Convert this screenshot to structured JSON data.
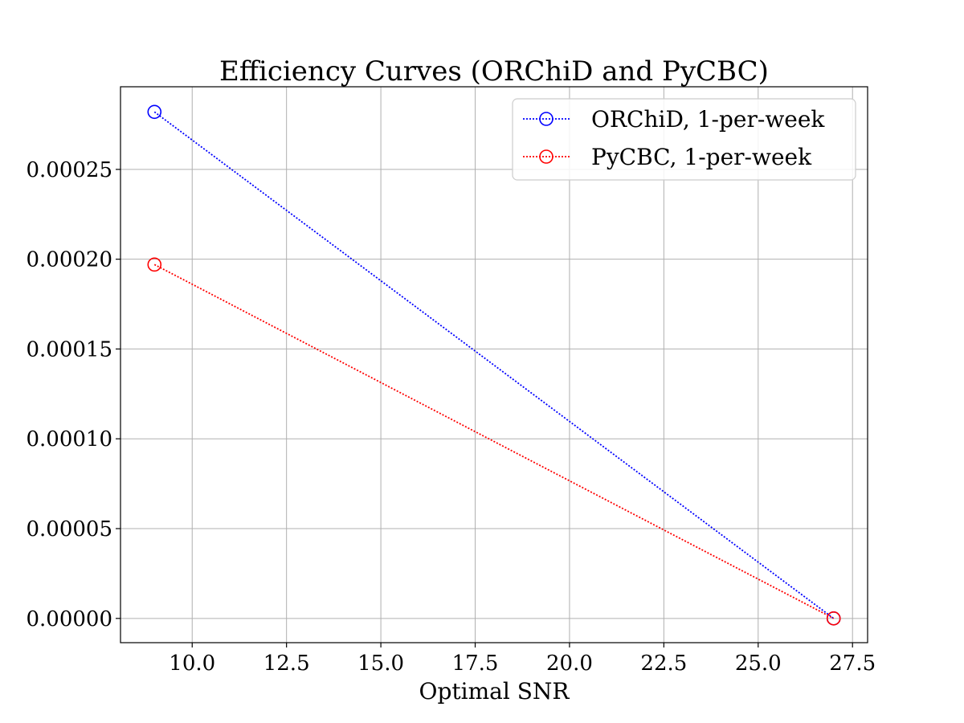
{
  "chart_data": {
    "type": "line",
    "title": "Efficiency Curves (ORChiD and PyCBC)",
    "xlabel": "Optimal SNR",
    "ylabel": "",
    "xlim": [
      8.1,
      27.9
    ],
    "ylim": [
      -1.35e-05,
      0.000296
    ],
    "x_ticks": [
      10.0,
      12.5,
      15.0,
      17.5,
      20.0,
      22.5,
      25.0,
      27.5
    ],
    "x_tick_labels": [
      "10.0",
      "12.5",
      "15.0",
      "17.5",
      "20.0",
      "22.5",
      "25.0",
      "27.5"
    ],
    "y_ticks": [
      0.0,
      5e-05,
      0.0001,
      0.00015,
      0.0002,
      0.00025
    ],
    "y_tick_labels": [
      "0.00000",
      "0.00005",
      "0.00010",
      "0.00015",
      "0.00020",
      "0.00025"
    ],
    "grid": true,
    "legend_position": "top-right",
    "series": [
      {
        "name": "ORChiD, 1-per-week",
        "color": "#0000ff",
        "line_style": "dotted",
        "marker": "open-circle",
        "x": [
          9.0,
          27.0
        ],
        "y": [
          0.000282,
          0.0
        ]
      },
      {
        "name": "PyCBC, 1-per-week",
        "color": "#ff0000",
        "line_style": "dotted",
        "marker": "open-circle",
        "x": [
          9.0,
          27.0
        ],
        "y": [
          0.000197,
          0.0
        ]
      }
    ]
  }
}
